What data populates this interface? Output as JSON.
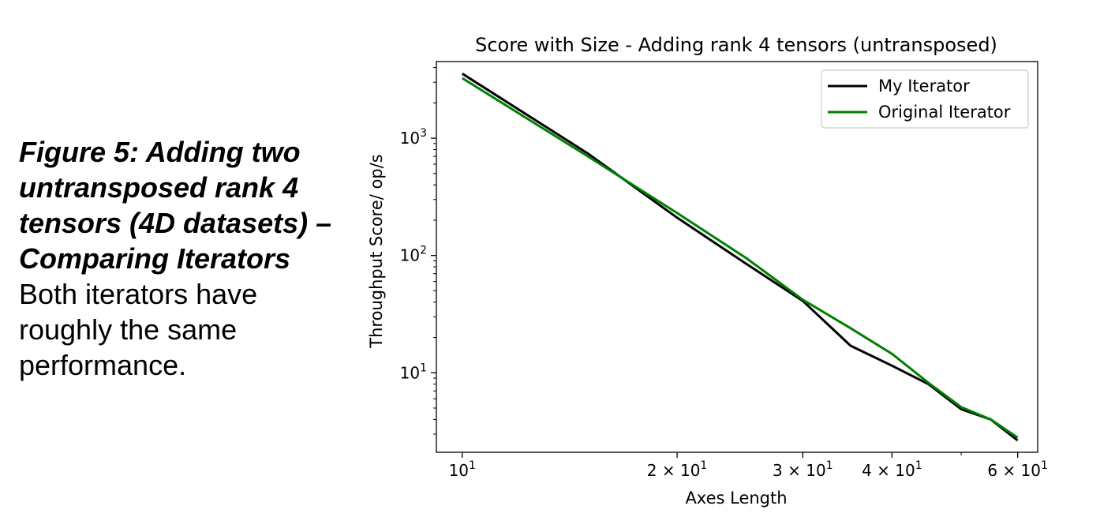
{
  "caption": {
    "heading": "Figure 5: Adding two untransposed rank 4 tensors (4D datasets) – Comparing Iterators",
    "body": "Both iterators have roughly the same performance."
  },
  "chart_data": {
    "type": "line",
    "title": "Score with Size - Adding rank 4 tensors (untransposed)",
    "xlabel": "Axes Length",
    "ylabel": "Throughput Score/ op/s",
    "xscale": "log",
    "yscale": "log",
    "xlim": [
      9.2,
      64
    ],
    "ylim": [
      2.1,
      4500
    ],
    "x_ticks": [
      {
        "value": 10,
        "base": "10",
        "exp": "1"
      },
      {
        "value": 20,
        "base": "2 × 10",
        "exp": "1"
      },
      {
        "value": 30,
        "base": "3 × 10",
        "exp": "1"
      },
      {
        "value": 40,
        "base": "4 × 10",
        "exp": "1"
      },
      {
        "value": 60,
        "base": "6 × 10",
        "exp": "1"
      }
    ],
    "y_ticks": [
      {
        "value": 10,
        "base": "10",
        "exp": "1"
      },
      {
        "value": 100,
        "base": "10",
        "exp": "2"
      },
      {
        "value": 1000,
        "base": "10",
        "exp": "3"
      }
    ],
    "legend_position": "upper-right",
    "grid": false,
    "series": [
      {
        "name": "My Iterator",
        "color": "#000000",
        "x": [
          10,
          15,
          20,
          25,
          30,
          35,
          40,
          45,
          50,
          55,
          60
        ],
        "y": [
          3550,
          740,
          210,
          85,
          41,
          17,
          11.5,
          8,
          4.9,
          4.0,
          2.65
        ]
      },
      {
        "name": "Original Iterator",
        "color": "#008000",
        "x": [
          10,
          15,
          20,
          25,
          30,
          35,
          40,
          45,
          50,
          55,
          60
        ],
        "y": [
          3250,
          700,
          230,
          95,
          42,
          24,
          14.5,
          8.2,
          5.1,
          4.0,
          2.8
        ]
      }
    ]
  }
}
